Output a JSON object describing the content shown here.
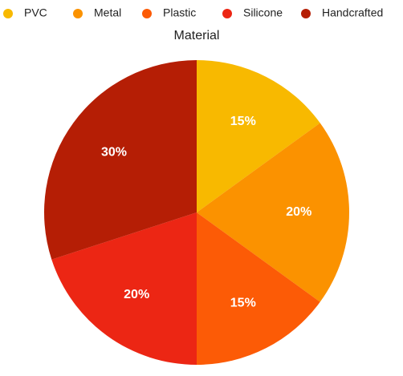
{
  "chart_data": {
    "type": "pie",
    "title": "Material",
    "categories": [
      "PVC",
      "Metal",
      "Plastic",
      "Silicone",
      "Handcrafted"
    ],
    "values": [
      15,
      20,
      15,
      20,
      30
    ],
    "value_labels": [
      "15%",
      "20%",
      "15%",
      "20%",
      "30%"
    ],
    "colors": [
      "#f8b900",
      "#fb9200",
      "#fc5b06",
      "#ec2614",
      "#b51e05"
    ],
    "legend": "top"
  }
}
